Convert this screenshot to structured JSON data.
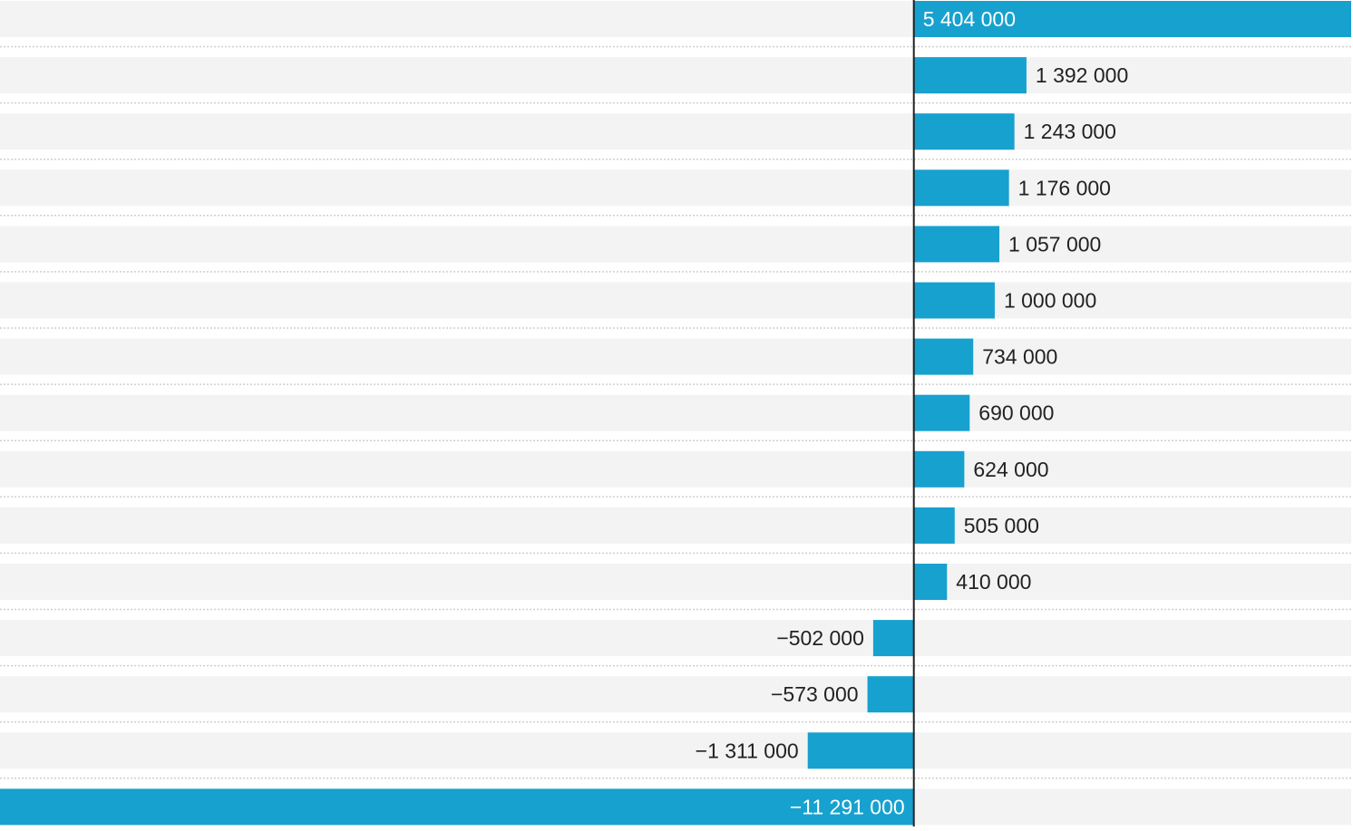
{
  "chart_data": {
    "type": "bar",
    "orientation": "horizontal",
    "title": "",
    "xlabel": "",
    "ylabel": "",
    "values": [
      5404000,
      1392000,
      1243000,
      1176000,
      1057000,
      1000000,
      734000,
      690000,
      624000,
      505000,
      410000,
      -502000,
      -573000,
      -1311000,
      -11291000
    ],
    "labels": [
      "5 404 000",
      "1 392 000",
      "1 243 000",
      "1 176 000",
      "1 057 000",
      "1 000 000",
      "734 000",
      "690 000",
      "624 000",
      "505 000",
      "410 000",
      "−502 000",
      "−573 000",
      "−1 311 000",
      "−11 291 000"
    ],
    "xlim": [
      -11291000,
      5404000
    ],
    "grid": false,
    "legend": "none",
    "colors": {
      "bar": "#17a1cf",
      "band": "#f3f3f3",
      "separator": "#cfcfcf",
      "zero_line": "#222222",
      "label_dark": "#222222",
      "label_light": "#ffffff"
    }
  }
}
